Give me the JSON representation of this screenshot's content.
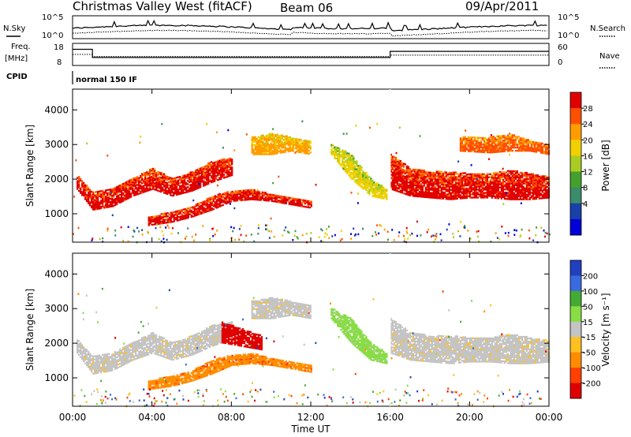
{
  "header": {
    "title": "Christmas Valley West (fitACF)",
    "beam": "Beam 06",
    "date": "09/Apr/2011"
  },
  "top_panels": {
    "nsky_label": "N.Sky",
    "nsky_ticks": [
      "10^5",
      "10^0"
    ],
    "nsearch_label": "N.Search",
    "nsearch_ticks": [
      "10^5",
      "10^0"
    ],
    "freq_label": "Freq.",
    "freq_unit": "[MHz]",
    "freq_ticks": [
      "18",
      "8"
    ],
    "nave_label": "Nave",
    "nave_ticks": [
      "60",
      "0"
    ],
    "cpid_label": "CPID",
    "cpid_value": "normal 150 IF"
  },
  "x_axis": {
    "label": "Time UT",
    "ticks": [
      "00:00",
      "04:00",
      "08:00",
      "12:00",
      "16:00",
      "20:00",
      "00:00"
    ]
  },
  "power_panel": {
    "ylabel": "Slant Range [km]",
    "yticks": [
      "1000",
      "2000",
      "3000",
      "4000"
    ],
    "colorbar_label": "Power [dB]",
    "colorbar_ticks": [
      "28",
      "24",
      "20",
      "16",
      "12",
      "8",
      "4"
    ],
    "colors": [
      "#e00000",
      "#ff5000",
      "#ff9c00",
      "#f0d000",
      "#aacc22",
      "#44a02c",
      "#3a8c6a",
      "#1840a8",
      "#0000d8"
    ]
  },
  "velocity_panel": {
    "ylabel": "Slant Range [km]",
    "yticks": [
      "1000",
      "2000",
      "3000",
      "4000"
    ],
    "colorbar_label": "Velocity [m s⁻¹]",
    "colorbar_ticks": [
      "200",
      "100",
      "50",
      "15",
      "-15",
      "-50",
      "-100",
      "-200"
    ],
    "colors": [
      "#2040c0",
      "#3a6ae0",
      "#44aa33",
      "#88dd44",
      "#c4c4c4",
      "#ffc020",
      "#ff8c00",
      "#ff4000",
      "#e00000"
    ]
  },
  "chart_data": [
    {
      "type": "line",
      "panel": "N.Sky / N.Search",
      "x_hours": [
        0,
        0.5,
        1,
        2,
        4,
        6,
        8,
        10,
        12,
        14,
        16,
        18,
        20,
        22,
        24
      ],
      "ylim": [
        1,
        100000
      ],
      "yscale": "log",
      "series": []
    },
    {
      "type": "line",
      "panel": "Freq. / Nave",
      "series": [
        {
          "name": "Freq.",
          "x_hours": [
            0,
            1,
            1,
            16,
            16,
            24
          ],
          "values": [
            15.5,
            15.5,
            11.5,
            11.5,
            14.5,
            14.5
          ]
        },
        {
          "name": "Nave",
          "x_hours": [
            0,
            1,
            1,
            16,
            16,
            24
          ],
          "values": [
            30,
            30,
            24,
            24,
            28,
            28
          ]
        }
      ],
      "ylim_freq": [
        8,
        18
      ],
      "ylim_nave": [
        0,
        60
      ]
    },
    {
      "type": "heatmap",
      "panel": "Power",
      "xlim_hours": [
        0,
        24
      ],
      "ylim_km": [
        180,
        4600
      ],
      "bands": [
        {
          "t": [
            0.2,
            1,
            2,
            3,
            4,
            5,
            6,
            7,
            8
          ],
          "r_low": [
            1700,
            1100,
            1200,
            1500,
            1700,
            1500,
            1650,
            1900,
            2100
          ],
          "r_high": [
            2100,
            1600,
            1700,
            2000,
            2300,
            2000,
            2200,
            2500,
            2600
          ],
          "level": 0
        },
        {
          "t": [
            3.8,
            5,
            6,
            7,
            8,
            9,
            10,
            11,
            12
          ],
          "r_low": [
            650,
            750,
            900,
            1100,
            1350,
            1400,
            1350,
            1250,
            1150
          ],
          "r_high": [
            900,
            1050,
            1200,
            1500,
            1650,
            1700,
            1550,
            1450,
            1350
          ],
          "level": 0
        },
        {
          "t": [
            16,
            17,
            18,
            19,
            20,
            21,
            22,
            23,
            24
          ],
          "r_low": [
            1700,
            1500,
            1450,
            1400,
            1450,
            1450,
            1400,
            1400,
            1450
          ],
          "r_high": [
            2700,
            2300,
            2200,
            2200,
            2150,
            2150,
            2250,
            2150,
            2050
          ],
          "level": 0
        },
        {
          "t": [
            9,
            10,
            11,
            12
          ],
          "r_low": [
            2700,
            2700,
            2800,
            2700
          ],
          "r_high": [
            3200,
            3300,
            3200,
            3100
          ],
          "level": 2
        },
        {
          "t": [
            13,
            14,
            15,
            15.8
          ],
          "r_low": [
            2700,
            2000,
            1500,
            1400
          ],
          "r_high": [
            3000,
            2700,
            2000,
            1700
          ],
          "level": 3
        },
        {
          "t": [
            19.5,
            21,
            22,
            23,
            24
          ],
          "r_low": [
            2800,
            2750,
            2800,
            2800,
            2700
          ],
          "r_high": [
            3200,
            3200,
            3300,
            3100,
            3000
          ],
          "level": 1
        }
      ]
    },
    {
      "type": "heatmap",
      "panel": "Velocity",
      "xlim_hours": [
        0,
        24
      ],
      "ylim_km": [
        180,
        4600
      ],
      "bands": [
        {
          "t": [
            0.2,
            1,
            2,
            3,
            4,
            5,
            6,
            7,
            8
          ],
          "r_low": [
            1700,
            1100,
            1200,
            1500,
            1700,
            1500,
            1650,
            1900,
            2100
          ],
          "r_high": [
            2100,
            1600,
            1700,
            2000,
            2300,
            2000,
            2200,
            2500,
            2600
          ],
          "level": 4
        },
        {
          "t": [
            3.8,
            5,
            6,
            7,
            8,
            9,
            10,
            11,
            12
          ],
          "r_low": [
            650,
            750,
            900,
            1100,
            1350,
            1400,
            1350,
            1250,
            1150
          ],
          "r_high": [
            900,
            1050,
            1200,
            1500,
            1650,
            1700,
            1550,
            1450,
            1350
          ],
          "level": 6
        },
        {
          "t": [
            16,
            17,
            18,
            19,
            20,
            21,
            22,
            23,
            24
          ],
          "r_low": [
            1700,
            1500,
            1450,
            1400,
            1450,
            1450,
            1400,
            1400,
            1450
          ],
          "r_high": [
            2700,
            2300,
            2200,
            2200,
            2150,
            2150,
            2250,
            2150,
            2050
          ],
          "level": 4
        },
        {
          "t": [
            7.5,
            8.5,
            9.5
          ],
          "r_low": [
            2000,
            1900,
            1800
          ],
          "r_high": [
            2600,
            2400,
            2200
          ],
          "level": 8
        },
        {
          "t": [
            13,
            14,
            15,
            15.8
          ],
          "r_low": [
            2700,
            2000,
            1500,
            1400
          ],
          "r_high": [
            3000,
            2700,
            2000,
            1700
          ],
          "level": 3
        },
        {
          "t": [
            9,
            10,
            11,
            12
          ],
          "r_low": [
            2700,
            2700,
            2800,
            2700
          ],
          "r_high": [
            3200,
            3300,
            3200,
            3100
          ],
          "level": 4
        }
      ]
    }
  ]
}
